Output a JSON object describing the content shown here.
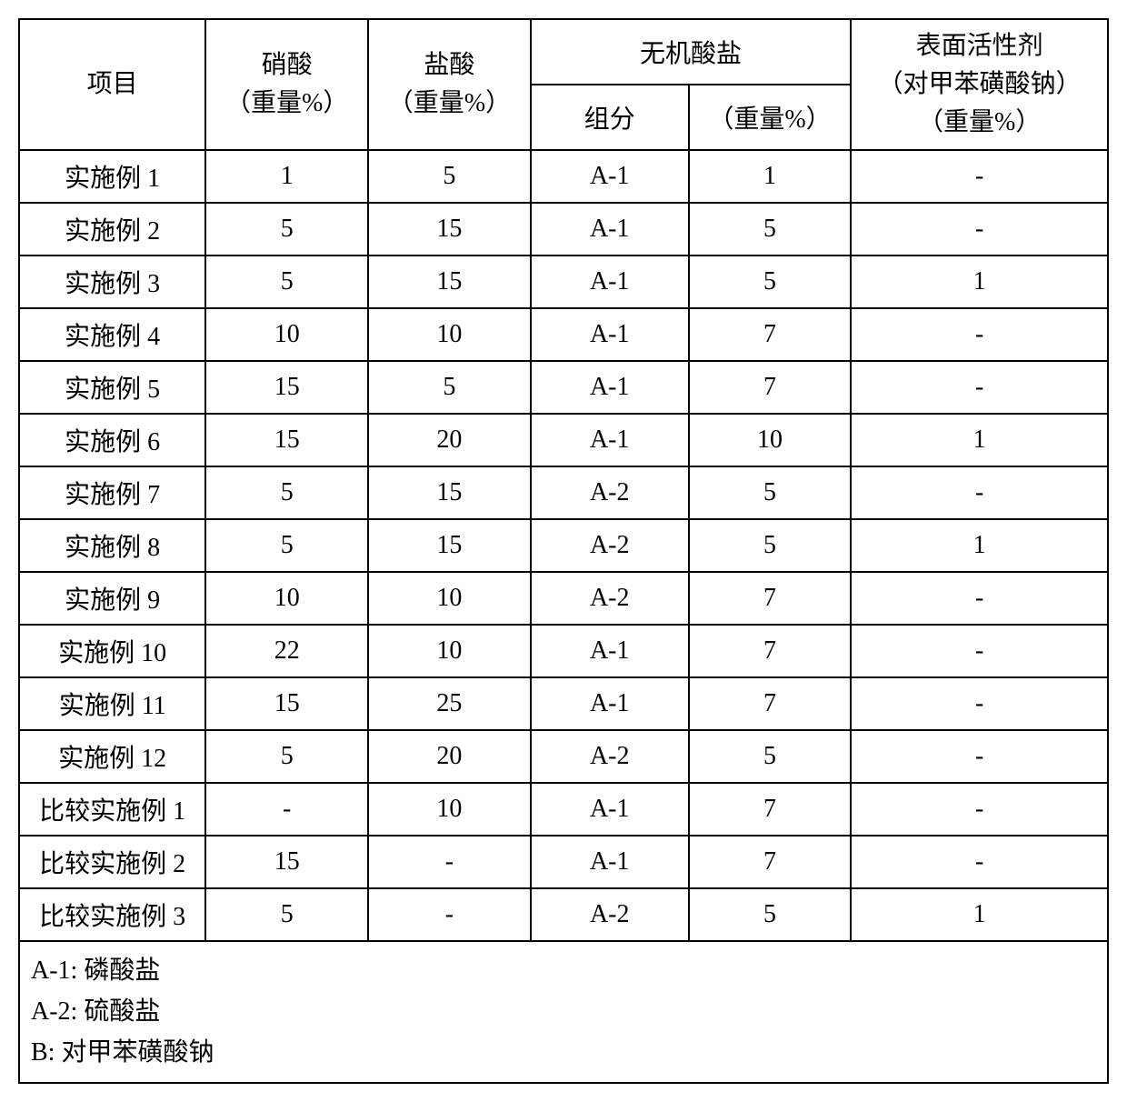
{
  "header": {
    "item": "项目",
    "nitric": "硝酸\n（重量%）",
    "hcl": "盐酸\n（重量%）",
    "salt_group": "无机酸盐",
    "salt_comp": "组分",
    "salt_wt": "（重量%）",
    "surfactant": "表面活性剂\n（对甲苯磺酸钠）\n（重量%）"
  },
  "rows": [
    {
      "label": "实施例 1",
      "nitric": "1",
      "hcl": "5",
      "comp": "A-1",
      "wt": "1",
      "surf": "-"
    },
    {
      "label": "实施例 2",
      "nitric": "5",
      "hcl": "15",
      "comp": "A-1",
      "wt": "5",
      "surf": "-"
    },
    {
      "label": "实施例 3",
      "nitric": "5",
      "hcl": "15",
      "comp": "A-1",
      "wt": "5",
      "surf": "1"
    },
    {
      "label": "实施例 4",
      "nitric": "10",
      "hcl": "10",
      "comp": "A-1",
      "wt": "7",
      "surf": "-"
    },
    {
      "label": "实施例 5",
      "nitric": "15",
      "hcl": "5",
      "comp": "A-1",
      "wt": "7",
      "surf": "-"
    },
    {
      "label": "实施例 6",
      "nitric": "15",
      "hcl": "20",
      "comp": "A-1",
      "wt": "10",
      "surf": "1"
    },
    {
      "label": "实施例 7",
      "nitric": "5",
      "hcl": "15",
      "comp": "A-2",
      "wt": "5",
      "surf": "-"
    },
    {
      "label": "实施例 8",
      "nitric": "5",
      "hcl": "15",
      "comp": "A-2",
      "wt": "5",
      "surf": "1"
    },
    {
      "label": "实施例 9",
      "nitric": "10",
      "hcl": "10",
      "comp": "A-2",
      "wt": "7",
      "surf": "-"
    },
    {
      "label": "实施例 10",
      "nitric": "22",
      "hcl": "10",
      "comp": "A-1",
      "wt": "7",
      "surf": "-"
    },
    {
      "label": "实施例 11",
      "nitric": "15",
      "hcl": "25",
      "comp": "A-1",
      "wt": "7",
      "surf": "-"
    },
    {
      "label": "实施例 12",
      "nitric": "5",
      "hcl": "20",
      "comp": "A-2",
      "wt": "5",
      "surf": "-"
    },
    {
      "label": "比较实施例 1",
      "nitric": "-",
      "hcl": "10",
      "comp": "A-1",
      "wt": "7",
      "surf": "-"
    },
    {
      "label": "比较实施例 2",
      "nitric": "15",
      "hcl": "-",
      "comp": "A-1",
      "wt": "7",
      "surf": "-"
    },
    {
      "label": "比较实施例 3",
      "nitric": "5",
      "hcl": "-",
      "comp": "A-2",
      "wt": "5",
      "surf": "1"
    }
  ],
  "footnotes": [
    "A-1:  磷酸盐",
    "A-2:  硫酸盐",
    "B:  对甲苯磺酸钠"
  ],
  "style": {
    "border_color": "#000000",
    "bg_color": "#ffffff",
    "text_color": "#000000",
    "fontsize": 28,
    "font_family": "SimSun"
  }
}
